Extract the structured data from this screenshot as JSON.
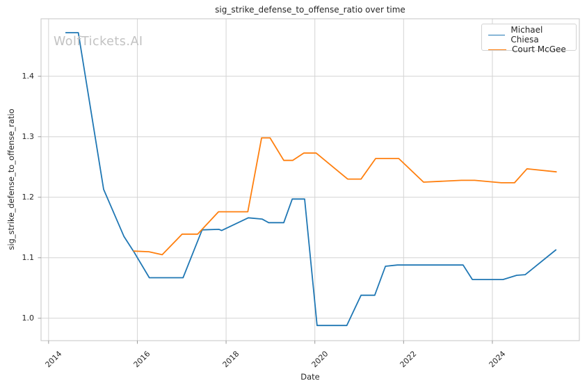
{
  "figure": {
    "title": "sig_strike_defense_to_offense_ratio over time",
    "watermark": "WolfTickets.AI",
    "xlabel": "Date",
    "ylabel": "sig_strike_defense_to_offense_ratio"
  },
  "colors": {
    "background": "#ffffff",
    "grid": "#d4d4d4",
    "spine": "#c6c6c6",
    "tick_mark": "#999999",
    "text": "#262626",
    "watermark": "#c2c2c2",
    "series_blue": "#1f77b4",
    "series_orange": "#ff7f0e"
  },
  "chart_data": {
    "type": "line",
    "title": "sig_strike_defense_to_offense_ratio over time",
    "xlabel": "Date",
    "ylabel": "sig_strike_defense_to_offense_ratio",
    "grid": true,
    "legend_position": "upper right",
    "x_unit": "decimal year",
    "x_range": [
      2013.83,
      2025.96
    ],
    "y_range": [
      0.963,
      1.495
    ],
    "x_ticks": [
      2014,
      2016,
      2018,
      2020,
      2022,
      2024
    ],
    "x_tick_labels": [
      "2014",
      "2016",
      "2018",
      "2020",
      "2022",
      "2024"
    ],
    "y_ticks": [
      1.0,
      1.1,
      1.2,
      1.3,
      1.4
    ],
    "y_tick_labels": [
      "1.0",
      "1.1",
      "1.2",
      "1.3",
      "1.4"
    ],
    "series": [
      {
        "name": "Michael Chiesa",
        "color": "#1f77b4",
        "points": [
          [
            2014.39,
            1.472
          ],
          [
            2014.67,
            1.472
          ],
          [
            2015.24,
            1.213
          ],
          [
            2015.7,
            1.135
          ],
          [
            2015.92,
            1.11
          ],
          [
            2016.27,
            1.067
          ],
          [
            2017.03,
            1.067
          ],
          [
            2017.46,
            1.146
          ],
          [
            2017.84,
            1.147
          ],
          [
            2017.9,
            1.145
          ],
          [
            2018.5,
            1.166
          ],
          [
            2018.81,
            1.164
          ],
          [
            2018.96,
            1.158
          ],
          [
            2019.3,
            1.158
          ],
          [
            2019.49,
            1.197
          ],
          [
            2019.77,
            1.197
          ],
          [
            2020.05,
            0.988
          ],
          [
            2020.72,
            0.988
          ],
          [
            2021.04,
            1.038
          ],
          [
            2021.35,
            1.038
          ],
          [
            2021.59,
            1.086
          ],
          [
            2021.86,
            1.088
          ],
          [
            2023.34,
            1.088
          ],
          [
            2023.55,
            1.064
          ],
          [
            2024.24,
            1.064
          ],
          [
            2024.55,
            1.071
          ],
          [
            2024.74,
            1.072
          ],
          [
            2025.43,
            1.113
          ]
        ]
      },
      {
        "name": "Court McGee",
        "color": "#ff7f0e",
        "points": [
          [
            2015.92,
            1.111
          ],
          [
            2016.26,
            1.11
          ],
          [
            2016.56,
            1.105
          ],
          [
            2017.01,
            1.139
          ],
          [
            2017.36,
            1.139
          ],
          [
            2017.83,
            1.176
          ],
          [
            2018.49,
            1.176
          ],
          [
            2018.8,
            1.298
          ],
          [
            2018.99,
            1.298
          ],
          [
            2019.3,
            1.261
          ],
          [
            2019.5,
            1.261
          ],
          [
            2019.75,
            1.273
          ],
          [
            2020.03,
            1.273
          ],
          [
            2020.74,
            1.23
          ],
          [
            2021.04,
            1.23
          ],
          [
            2021.37,
            1.264
          ],
          [
            2021.89,
            1.264
          ],
          [
            2022.45,
            1.225
          ],
          [
            2023.3,
            1.228
          ],
          [
            2023.6,
            1.228
          ],
          [
            2024.2,
            1.224
          ],
          [
            2024.5,
            1.224
          ],
          [
            2024.78,
            1.247
          ],
          [
            2025.44,
            1.242
          ]
        ]
      }
    ]
  }
}
